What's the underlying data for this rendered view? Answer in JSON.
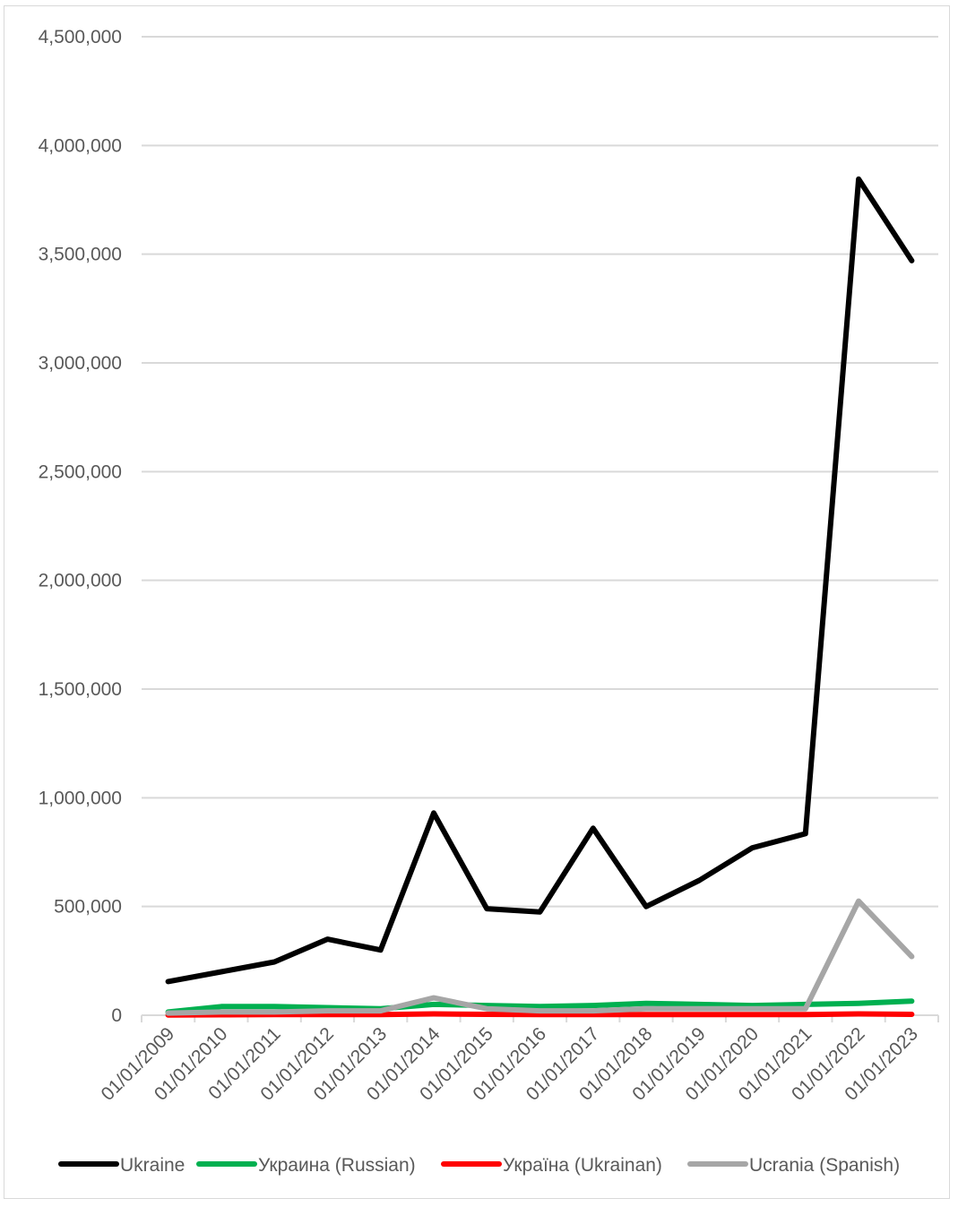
{
  "chart_data": {
    "type": "line",
    "title": "",
    "xlabel": "",
    "ylabel": "",
    "ylim": [
      0,
      4500000
    ],
    "y_ticks": [
      "0",
      "500,000",
      "1,000,000",
      "1,500,000",
      "2,000,000",
      "2,500,000",
      "3,000,000",
      "3,500,000",
      "4,000,000",
      "4,500,000"
    ],
    "y_tick_values": [
      0,
      500000,
      1000000,
      1500000,
      2000000,
      2500000,
      3000000,
      3500000,
      4000000,
      4500000
    ],
    "categories": [
      "01/01/2009",
      "01/01/2010",
      "01/01/2011",
      "01/01/2012",
      "01/01/2013",
      "01/01/2014",
      "01/01/2015",
      "01/01/2016",
      "01/01/2017",
      "01/01/2018",
      "01/01/2019",
      "01/01/2020",
      "01/01/2021",
      "01/01/2022",
      "01/01/2023"
    ],
    "grid": true,
    "legend_position": "bottom",
    "series": [
      {
        "name": "Ukraine",
        "color": "#000000",
        "values": [
          155000,
          200000,
          245000,
          350000,
          300000,
          930000,
          490000,
          475000,
          860000,
          500000,
          620000,
          770000,
          835000,
          3845000,
          3470000
        ]
      },
      {
        "name": "Украина (Russian)",
        "color": "#00b050",
        "values": [
          15000,
          40000,
          40000,
          35000,
          30000,
          50000,
          45000,
          40000,
          45000,
          55000,
          50000,
          45000,
          50000,
          55000,
          65000
        ]
      },
      {
        "name": "Україна (Ukrainan)",
        "color": "#ff0000",
        "values": [
          1000,
          2000,
          3000,
          3000,
          3000,
          6000,
          4000,
          3000,
          3000,
          3000,
          3000,
          3000,
          3000,
          6000,
          4000
        ]
      },
      {
        "name": "Ucrania (Spanish)",
        "color": "#a6a6a6",
        "values": [
          10000,
          15000,
          15000,
          20000,
          20000,
          80000,
          30000,
          20000,
          20000,
          30000,
          30000,
          30000,
          30000,
          525000,
          270000
        ]
      }
    ]
  }
}
